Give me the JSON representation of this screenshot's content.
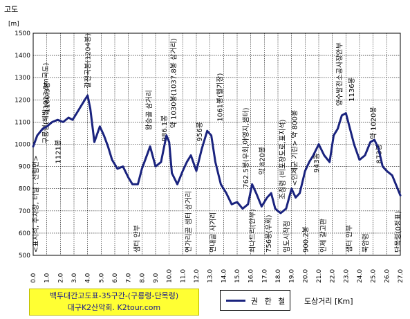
{
  "chart_data": {
    "type": "line",
    "ylabel": "고도",
    "yunit": "[m]",
    "xlabel": "도상거리 [Km]",
    "xlim": [
      0,
      27
    ],
    "ylim": [
      500,
      1500
    ],
    "grid": true,
    "legend_position": "bottom-center",
    "x_ticks": [
      "0.0",
      "1.0",
      "2.0",
      "3.0",
      "4.0",
      "5.0",
      "6.0",
      "7.0",
      "8.0",
      "9.0",
      "10.0",
      "11.0",
      "12.0",
      "13.0",
      "14.0",
      "15.0",
      "16.0",
      "17.0",
      "18.0",
      "19.0",
      "20.0",
      "21.0",
      "22.0",
      "23.0",
      "24.0",
      "25.0",
      "26.0",
      "27.0"
    ],
    "y_ticks": [
      "500",
      "600",
      "700",
      "800",
      "900",
      "1000",
      "1100",
      "1200",
      "1300",
      "1400",
      "1500"
    ],
    "series": [
      {
        "name": "권 한 철",
        "color": "#1a237e",
        "x": [
          0.0,
          0.3,
          0.7,
          1.0,
          1.4,
          1.8,
          2.2,
          2.6,
          2.9,
          3.2,
          3.5,
          3.8,
          4.0,
          4.2,
          4.5,
          4.9,
          5.2,
          5.5,
          5.8,
          6.2,
          6.6,
          7.0,
          7.3,
          7.7,
          8.0,
          8.3,
          8.6,
          9.0,
          9.4,
          9.8,
          10.0,
          10.2,
          10.6,
          11.0,
          11.3,
          11.6,
          12.0,
          12.4,
          12.8,
          13.1,
          13.4,
          13.8,
          14.2,
          14.6,
          15.0,
          15.4,
          15.8,
          16.1,
          16.4,
          16.8,
          17.2,
          17.5,
          17.8,
          18.0,
          18.2,
          18.6,
          19.0,
          19.3,
          19.6,
          20.0,
          20.3,
          20.6,
          21.0,
          21.4,
          21.8,
          22.1,
          22.4,
          22.7,
          23.0,
          23.3,
          23.6,
          24.0,
          24.4,
          24.8,
          25.1,
          25.4,
          25.7,
          26.0,
          26.4,
          26.8,
          27.0
        ],
        "y": [
          990,
          1040,
          1070,
          1080,
          1100,
          1110,
          1100,
          1120,
          1110,
          1140,
          1170,
          1200,
          1220,
          1160,
          1010,
          1080,
          1040,
          990,
          930,
          890,
          900,
          850,
          820,
          820,
          890,
          940,
          990,
          900,
          920,
          1040,
          1010,
          870,
          820,
          880,
          920,
          950,
          880,
          980,
          1060,
          1040,
          920,
          820,
          780,
          730,
          740,
          710,
          730,
          820,
          780,
          720,
          760,
          780,
          710,
          700,
          690,
          710,
          800,
          760,
          780,
          880,
          920,
          950,
          1000,
          950,
          920,
          1040,
          1070,
          1130,
          1140,
          1070,
          1000,
          930,
          950,
          1010,
          1020,
          980,
          900,
          880,
          860,
          800,
          770
        ]
      }
    ],
    "annotations": [
      {
        "x": 0.15,
        "y": 500,
        "text": "<표지석, 주차장, 터널 : 신림면>"
      },
      {
        "x": 0.9,
        "y": 990,
        "text": "구룡령(해발1013.5m국도)"
      },
      {
        "x": 1.0,
        "y": 1130,
        "text": "1100.3봉"
      },
      {
        "x": 1.8,
        "y": 900,
        "text": "1121봉"
      },
      {
        "x": 4.0,
        "y": 1240,
        "text": "갈전곡봉(1204봉)"
      },
      {
        "x": 8.5,
        "y": 1050,
        "text": "왕승골 삼거리"
      },
      {
        "x": 9.6,
        "y": 1000,
        "text": "986.1봉"
      },
      {
        "x": 7.6,
        "y": 500,
        "text": "샘터 안부"
      },
      {
        "x": 10.3,
        "y": 1060,
        "text": "약 1030봉(1037.8봉 삼거리)"
      },
      {
        "x": 11.4,
        "y": 500,
        "text": "연가리골 샘터 삼거리"
      },
      {
        "x": 12.2,
        "y": 1000,
        "text": "956봉"
      },
      {
        "x": 13.7,
        "y": 1090,
        "text": "1061봉(헬기장)"
      },
      {
        "x": 13.2,
        "y": 500,
        "text": "연내골 사거리"
      },
      {
        "x": 15.6,
        "y": 790,
        "text": "762.5봉(우회,야영지,샘터)"
      },
      {
        "x": 16.8,
        "y": 850,
        "text": "약 820봉"
      },
      {
        "x": 16.1,
        "y": 500,
        "text": "쇠나드리(안부)"
      },
      {
        "x": 17.3,
        "y": 500,
        "text": "756봉(우회)"
      },
      {
        "x": 18.3,
        "y": 740,
        "text": "조침령 (비포장도로,표지석)"
      },
      {
        "x": 19.2,
        "y": 800,
        "text": "<인제군 기린> 약 800봉"
      },
      {
        "x": 18.6,
        "y": 500,
        "text": "임도시작점"
      },
      {
        "x": 20.0,
        "y": 500,
        "text": "900.2봉"
      },
      {
        "x": 20.8,
        "y": 860,
        "text": "943봉"
      },
      {
        "x": 21.3,
        "y": 500,
        "text": "인제 갈고판"
      },
      {
        "x": 22.5,
        "y": 1160,
        "text": "양수발전소공사장안부"
      },
      {
        "x": 23.4,
        "y": 1180,
        "text": "1136봉"
      },
      {
        "x": 23.2,
        "y": 500,
        "text": "샘터 안부"
      },
      {
        "x": 24.4,
        "y": 500,
        "text": "북암령"
      },
      {
        "x": 25.0,
        "y": 1010,
        "text": "약 1020봉"
      },
      {
        "x": 25.4,
        "y": 900,
        "text": "873봉"
      },
      {
        "x": 26.8,
        "y": 500,
        "text": "단목령(0정표)"
      }
    ]
  },
  "title_box": {
    "line1": "백두대간고도표-35구간-(구룡령-단목령)",
    "line2": "대구K2산악회. K2tour.com",
    "background": "#ffff33",
    "text_color": "#1a1a8c"
  },
  "legend": {
    "label": "권 한 철"
  }
}
